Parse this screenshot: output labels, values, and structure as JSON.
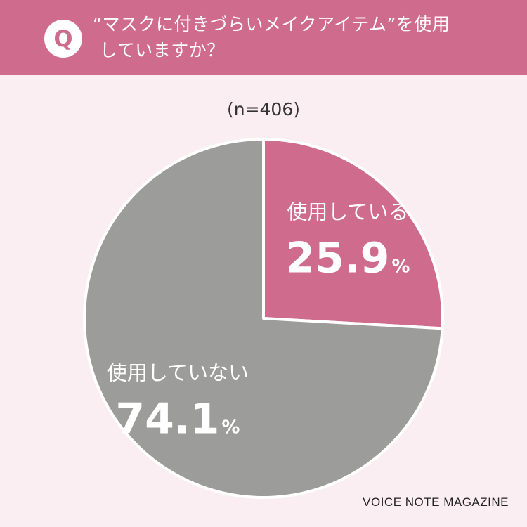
{
  "question": {
    "badge": "Q",
    "line1": "“マスクに付きづらいメイクアイテム”を使用",
    "line2": "していますか？"
  },
  "sample_label": "(n=406)",
  "credit": "VOICE NOTE MAGAZINE",
  "colors": {
    "header": "#cf6c8d",
    "background": "#fbeef2",
    "slice_yes": "#cf6c8d",
    "slice_no": "#9c9c9a"
  },
  "chart_data": {
    "type": "pie",
    "title": "",
    "slices": [
      {
        "label": "使用している",
        "value": 25.9,
        "value_text": "25.9",
        "unit": "%",
        "color": "#cf6c8d"
      },
      {
        "label": "使用していない",
        "value": 74.1,
        "value_text": "74.1",
        "unit": "%",
        "color": "#9c9c9a"
      }
    ]
  }
}
